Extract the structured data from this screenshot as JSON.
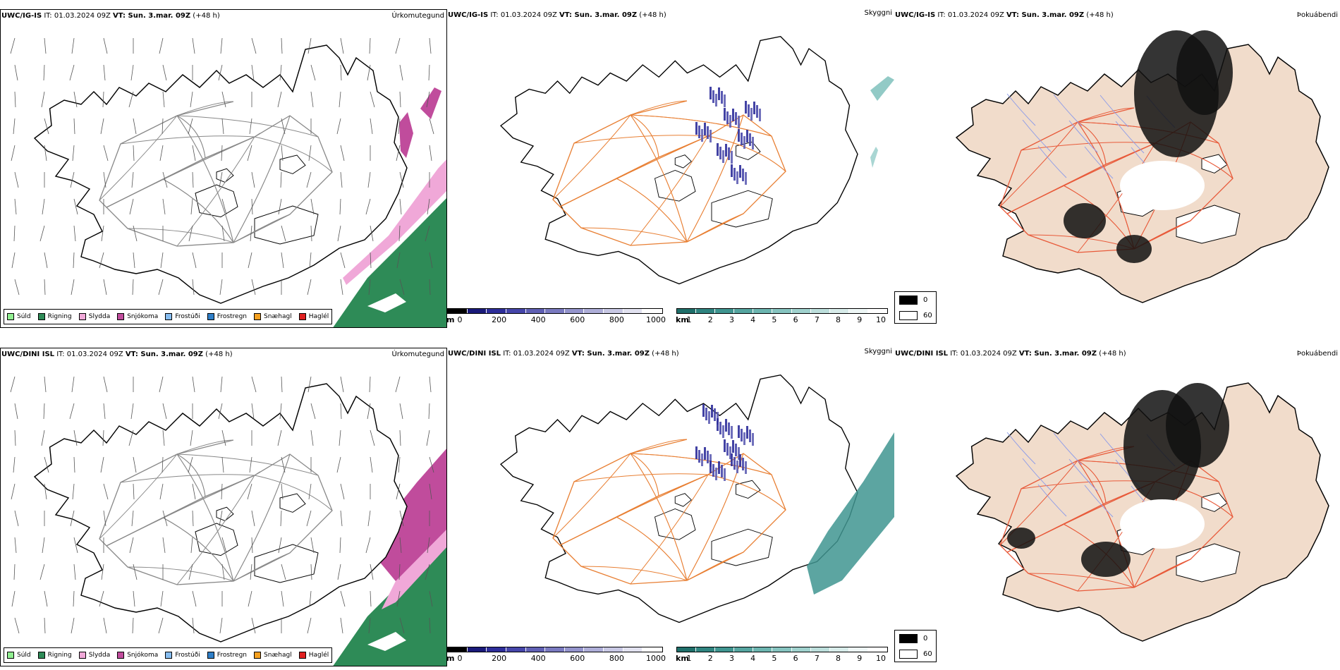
{
  "rows": [
    {
      "model": "UWC/IG-IS",
      "precip": {
        "title_model": "UWC/IG-IS",
        "title_it": " IT: 01.03.2024 09Z ",
        "title_vt": "VT: Sun. 3.mar. 09Z",
        "title_lead": " (+48 h)",
        "name": "Úrkomutegund"
      },
      "visibility": {
        "title_model": "UWC/IG-IS",
        "title_it": " IT: 01.03.2024 09Z ",
        "title_vt": "VT: Sun. 3.mar. 09Z",
        "title_lead": " (+48 h)",
        "name": "Skyggni"
      },
      "fog": {
        "title_model": "UWC/IG-IS",
        "title_it": " IT: 01.03.2024 09Z ",
        "title_vt": "VT: Sun. 3.mar. 09Z",
        "title_lead": " (+48 h)",
        "name": "Þokuábendi"
      }
    },
    {
      "model": "UWC/DINI ISL",
      "precip": {
        "title_model": "UWC/DINI ISL",
        "title_it": " IT: 01.03.2024 09Z ",
        "title_vt": "VT: Sun. 3.mar. 09Z",
        "title_lead": " (+48 h)",
        "name": "Úrkomutegund"
      },
      "visibility": {
        "title_model": "UWC/DINI ISL",
        "title_it": " IT: 01.03.2024 09Z ",
        "title_vt": "VT: Sun. 3.mar. 09Z",
        "title_lead": " (+48 h)",
        "name": "Skyggni"
      },
      "fog": {
        "title_model": "UWC/DINI ISL",
        "title_it": " IT: 01.03.2024 09Z ",
        "title_vt": "VT: Sun. 3.mar. 09Z",
        "title_lead": " (+48 h)",
        "name": "Þokuábendi"
      }
    }
  ],
  "precip_legend": [
    {
      "label": "Súld",
      "color": "#90ee90"
    },
    {
      "label": "Rigning",
      "color": "#2e8b57"
    },
    {
      "label": "Slydda",
      "color": "#f0a8d8"
    },
    {
      "label": "Snjókoma",
      "color": "#c04c9c"
    },
    {
      "label": "Frostúði",
      "color": "#87bdf0"
    },
    {
      "label": "Frostregn",
      "color": "#2f7fc8"
    },
    {
      "label": "Snæhagl",
      "color": "#f4a020"
    },
    {
      "label": "Haglél",
      "color": "#e02020"
    }
  ],
  "scale_m": {
    "unit": "m",
    "ticks": [
      "0",
      "200",
      "400",
      "600",
      "800",
      "1000"
    ],
    "colors": [
      "#000000",
      "#1a1a7a",
      "#2e2e9a",
      "#4646aa",
      "#6060b4",
      "#7a7ac0",
      "#9494cc",
      "#aeaed8",
      "#c8c8e4",
      "#e2e2f0",
      "#ffffff"
    ]
  },
  "scale_km": {
    "unit": "km",
    "ticks": [
      "1",
      "2",
      "3",
      "4",
      "5",
      "6",
      "7",
      "8",
      "9",
      "10"
    ],
    "colors": [
      "#1f6f6a",
      "#2f8480",
      "#3f9590",
      "#55a5a0",
      "#6cb5b0",
      "#86c4c0",
      "#a0d2ce",
      "#bddfdc",
      "#d8ecea",
      "#eef7f6",
      "#ffffff"
    ]
  },
  "fog_legend": {
    "low": "0",
    "high": "60",
    "low_color": "#000000",
    "high_color": "#ffffff"
  },
  "colors": {
    "land_fog": "#f1dccb",
    "road": "#e87f33",
    "road_fog": "#e85a3a",
    "river": "#8f9de8"
  }
}
